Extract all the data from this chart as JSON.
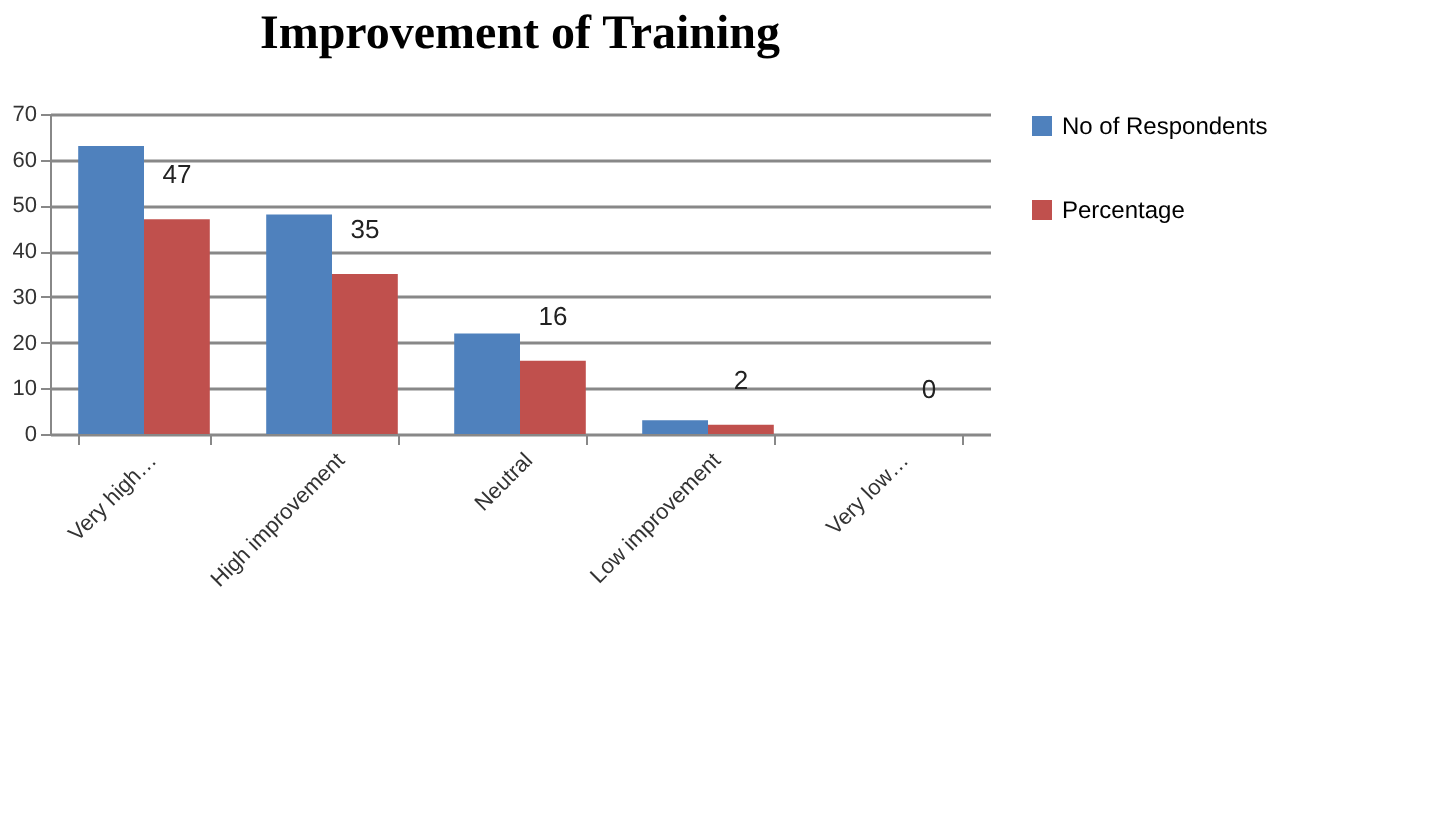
{
  "chart_data": {
    "type": "bar",
    "title": "Improvement  of Training",
    "categories": [
      "Very high…",
      "High improvement",
      "Neutral",
      "Low improvement",
      "Very low…"
    ],
    "series": [
      {
        "name": "No of Respondents",
        "color": "#4f81bd",
        "values": [
          63,
          48,
          22,
          3,
          0
        ]
      },
      {
        "name": "Percentage",
        "color": "#c0504d",
        "values": [
          47,
          35,
          16,
          2,
          0
        ],
        "value_labels": [
          "47",
          "35",
          "16",
          "2",
          "0"
        ]
      }
    ],
    "ylim": [
      0,
      70
    ],
    "yticks": [
      0,
      10,
      20,
      30,
      40,
      50,
      60,
      70
    ],
    "grid": "y",
    "legend": "right"
  }
}
